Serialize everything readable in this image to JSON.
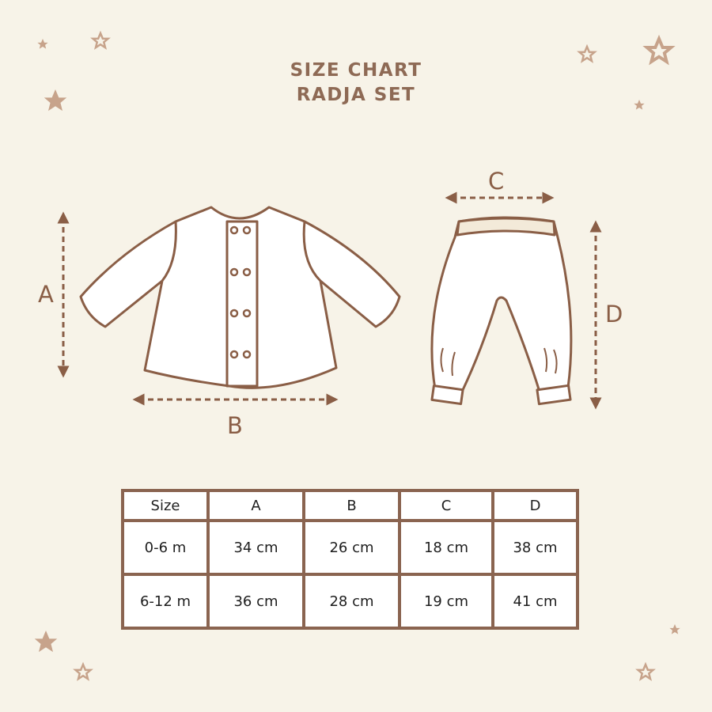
{
  "title": {
    "line1": "SIZE CHART",
    "line2": "RADJA SET"
  },
  "labels": {
    "a": "A",
    "b": "B",
    "c": "C",
    "d": "D"
  },
  "colors": {
    "background": "#f7f3e8",
    "outline": "#8a5e46",
    "stars": "#c7a38b"
  },
  "table": {
    "headers": [
      "Size",
      "A",
      "B",
      "C",
      "D"
    ],
    "rows": [
      [
        "0-6 m",
        "34 cm",
        "26 cm",
        "18 cm",
        "38 cm"
      ],
      [
        "6-12 m",
        "36 cm",
        "28 cm",
        "19 cm",
        "41 cm"
      ]
    ]
  }
}
